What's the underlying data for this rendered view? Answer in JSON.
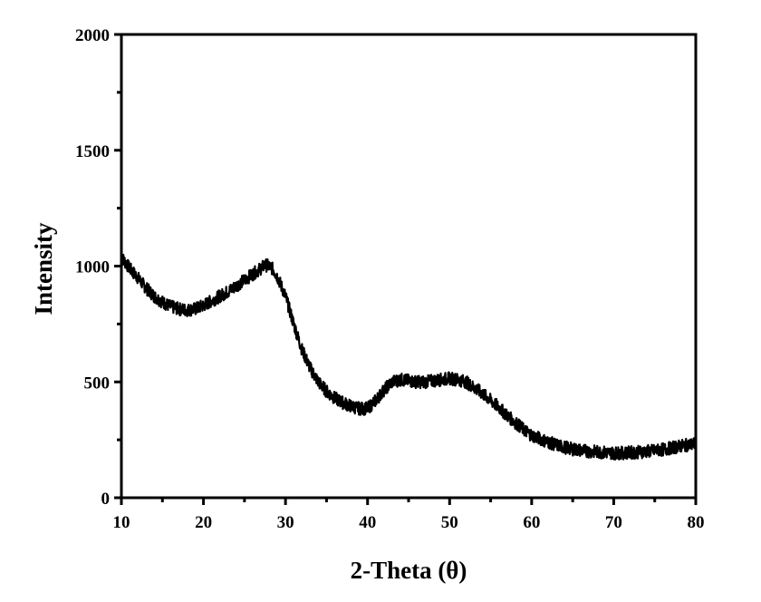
{
  "chart_data": {
    "type": "line",
    "title": "",
    "xlabel": "2-Theta (θ)",
    "ylabel": "Intensity",
    "xlim": [
      10,
      80
    ],
    "ylim": [
      0,
      2000
    ],
    "xticks": [
      10,
      20,
      30,
      40,
      50,
      60,
      70,
      80
    ],
    "xtick_labels": [
      "10",
      "20",
      "30",
      "40",
      "50",
      "60",
      "70",
      "80"
    ],
    "yticks": [
      0,
      500,
      1000,
      1500,
      2000
    ],
    "ytick_labels": [
      "0",
      "500",
      "1000",
      "1500",
      "2000"
    ],
    "grid": false,
    "legend": "none",
    "line_color": "#000000",
    "series": [
      {
        "x": [
          10,
          11,
          12,
          13,
          14,
          15,
          16,
          17,
          18,
          19,
          20,
          21,
          22,
          23,
          24,
          25,
          26,
          27,
          27.5,
          28,
          28.5,
          29,
          30,
          31,
          32,
          33,
          34,
          35,
          36,
          37,
          38,
          39,
          40,
          41,
          42,
          43,
          44,
          45,
          46,
          47,
          48,
          49,
          50,
          51,
          52,
          53,
          54,
          55,
          56,
          57,
          58,
          59,
          60,
          61,
          62,
          63,
          64,
          65,
          66,
          67,
          68,
          69,
          70,
          71,
          72,
          73,
          74,
          75,
          76,
          77,
          78,
          79,
          80
        ],
        "y": [
          1040,
          990,
          950,
          905,
          870,
          845,
          825,
          815,
          810,
          815,
          830,
          850,
          870,
          890,
          915,
          940,
          965,
          990,
          1005,
          1000,
          985,
          955,
          870,
          750,
          640,
          560,
          500,
          460,
          430,
          410,
          395,
          385,
          385,
          420,
          465,
          500,
          510,
          505,
          500,
          500,
          505,
          510,
          515,
          510,
          500,
          475,
          450,
          420,
          390,
          355,
          325,
          295,
          270,
          255,
          240,
          228,
          218,
          210,
          205,
          200,
          198,
          195,
          193,
          193,
          195,
          197,
          200,
          203,
          208,
          215,
          222,
          228,
          232
        ]
      }
    ]
  }
}
